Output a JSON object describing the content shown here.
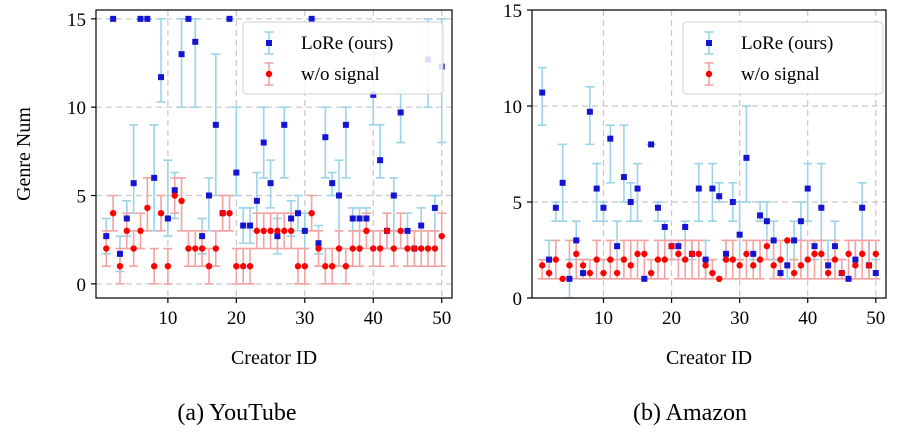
{
  "panels": [
    {
      "caption": "(a) YouTube",
      "xlabel": "Creator ID",
      "ylabel": "Genre Num",
      "legend": [
        "LoRe (ours)",
        "w/o signal"
      ]
    },
    {
      "caption": "(b) Amazon",
      "xlabel": "Creator ID",
      "ylabel": "",
      "legend": [
        "LoRe (ours)",
        "w/o signal"
      ]
    }
  ],
  "chart_data": [
    {
      "type": "scatter",
      "title": "",
      "xlabel": "Creator ID",
      "ylabel": "Genre Num",
      "xlim": [
        -0.5,
        51.5
      ],
      "ylim": [
        -0.8,
        15.5
      ],
      "xticks": [
        10,
        20,
        30,
        40,
        50
      ],
      "yticks": [
        0,
        5,
        10,
        15
      ],
      "grid": true,
      "legend_position": "top-right",
      "series": [
        {
          "name": "LoRe (ours)",
          "color": "#1414d2",
          "errorbar_color": "#9bd3e8",
          "marker": "square",
          "x": [
            1,
            2,
            3,
            4,
            5,
            6,
            7,
            8,
            9,
            10,
            11,
            12,
            13,
            14,
            15,
            16,
            17,
            18,
            19,
            20,
            21,
            22,
            23,
            24,
            25,
            26,
            27,
            28,
            29,
            30,
            31,
            32,
            33,
            34,
            35,
            36,
            37,
            38,
            39,
            40,
            41,
            42,
            43,
            44,
            45,
            46,
            47,
            48,
            49,
            50
          ],
          "y": [
            2.7,
            15,
            1.7,
            3.7,
            5.7,
            15,
            15,
            6,
            11.7,
            3.7,
            5.3,
            13,
            15,
            13.7,
            2.7,
            5,
            9,
            4,
            15,
            6.3,
            3.3,
            3.3,
            4.7,
            8,
            5.7,
            2.7,
            9,
            3.7,
            4,
            3,
            15,
            2.3,
            8.3,
            5.7,
            5,
            9,
            3.7,
            3.7,
            3.7,
            10.7,
            7,
            3,
            5,
            9.7,
            3,
            2,
            3.3,
            12.7,
            4.3,
            12.3
          ],
          "err_low": [
            1.7,
            15,
            0.7,
            2.7,
            4,
            15,
            15,
            3,
            10.3,
            2.7,
            3.7,
            10,
            15,
            10,
            1.7,
            3,
            5,
            3,
            15,
            5,
            2.3,
            2.3,
            3,
            6,
            4.3,
            1.7,
            6,
            2.7,
            3,
            2,
            15,
            1.7,
            6,
            5,
            3,
            6,
            3,
            3,
            3,
            9,
            6,
            2,
            3,
            8,
            2,
            1,
            2,
            10,
            3,
            8
          ],
          "err_high": [
            3.7,
            15,
            2.7,
            4.7,
            9,
            15,
            15,
            9,
            15,
            7,
            6.3,
            15,
            15,
            15,
            3.7,
            6,
            13,
            5,
            15,
            10,
            4.3,
            4.3,
            6.3,
            10,
            7,
            3.7,
            10,
            4.7,
            5,
            4,
            15,
            3.3,
            10,
            6.3,
            7,
            10,
            4.3,
            4.3,
            4.3,
            13,
            9,
            4,
            6,
            11,
            4,
            3,
            4.3,
            15,
            5,
            15
          ]
        },
        {
          "name": "w/o signal",
          "color": "#ff0000",
          "errorbar_color": "#f4a3a3",
          "marker": "circle",
          "x": [
            1,
            2,
            3,
            4,
            5,
            6,
            7,
            8,
            9,
            10,
            11,
            12,
            13,
            14,
            15,
            16,
            17,
            18,
            19,
            20,
            21,
            22,
            23,
            24,
            25,
            26,
            27,
            28,
            29,
            30,
            31,
            32,
            33,
            34,
            35,
            36,
            37,
            38,
            39,
            40,
            41,
            42,
            43,
            44,
            45,
            46,
            47,
            48,
            49,
            50
          ],
          "y": [
            2,
            4,
            1,
            3,
            2,
            3,
            4.3,
            1,
            4,
            1,
            5,
            4.7,
            2,
            2,
            2,
            1,
            2,
            4,
            4,
            1,
            1,
            1,
            3,
            3,
            3,
            3,
            3,
            3,
            1,
            1,
            4,
            2,
            1,
            1,
            2,
            1,
            2,
            2,
            3,
            2,
            2,
            3,
            2,
            3,
            2,
            2,
            2,
            2,
            2,
            2.7
          ],
          "err_low": [
            1,
            3,
            0,
            2,
            1,
            2,
            3,
            0,
            3,
            0,
            4,
            3,
            1,
            1,
            1,
            0,
            1,
            3,
            3,
            0,
            0,
            0,
            2,
            2,
            2,
            2,
            2,
            2,
            0,
            0,
            3,
            1,
            0,
            0,
            1,
            0,
            1,
            1,
            2,
            1,
            1,
            2,
            1,
            2,
            1,
            1,
            1,
            1,
            1,
            1
          ],
          "err_high": [
            3,
            5,
            2,
            4,
            3,
            4,
            6,
            2,
            5,
            2,
            6,
            6,
            3,
            3,
            3,
            2,
            3,
            5,
            5,
            2,
            2,
            2,
            4,
            4,
            4,
            4,
            4,
            4,
            2,
            2,
            5,
            3,
            2,
            2,
            3,
            2,
            3,
            3,
            4,
            3,
            3,
            4,
            3,
            4,
            3,
            3,
            3,
            3,
            3,
            4
          ]
        }
      ]
    },
    {
      "type": "scatter",
      "title": "",
      "xlabel": "Creator ID",
      "ylabel": "",
      "xlim": [
        -0.5,
        51.5
      ],
      "ylim": [
        0,
        15
      ],
      "xticks": [
        10,
        20,
        30,
        40,
        50
      ],
      "yticks": [
        0,
        5,
        10,
        15
      ],
      "grid": true,
      "legend_position": "top-right",
      "series": [
        {
          "name": "LoRe (ours)",
          "color": "#1414d2",
          "errorbar_color": "#9bd3e8",
          "marker": "square",
          "x": [
            1,
            2,
            3,
            4,
            5,
            6,
            7,
            8,
            9,
            10,
            11,
            12,
            13,
            14,
            15,
            16,
            17,
            18,
            19,
            20,
            21,
            22,
            23,
            24,
            25,
            26,
            27,
            28,
            29,
            30,
            31,
            32,
            33,
            34,
            35,
            36,
            37,
            38,
            39,
            40,
            41,
            42,
            43,
            44,
            45,
            46,
            47,
            48,
            49,
            50
          ],
          "y": [
            10.7,
            2,
            4.7,
            6,
            1,
            3,
            1.3,
            9.7,
            5.7,
            4.7,
            8.3,
            2.7,
            6.3,
            5,
            5.7,
            1,
            8,
            4.7,
            3.7,
            2.7,
            2.7,
            3.7,
            2.3,
            5.7,
            2,
            5.7,
            5.3,
            2.3,
            5,
            3.3,
            7.3,
            2.3,
            4.3,
            4,
            3,
            1.3,
            1.7,
            3,
            4,
            5.7,
            2.7,
            4.7,
            1.7,
            2.7,
            1.3,
            1,
            2,
            4.7,
            1.7,
            1.3
          ],
          "err_low": [
            9,
            1,
            4,
            4,
            0,
            2,
            1,
            8,
            4,
            4,
            6,
            2,
            5,
            4,
            4,
            1,
            8,
            4,
            3,
            2,
            2,
            3,
            2,
            4,
            1,
            4,
            5,
            2,
            4,
            2,
            5,
            2,
            4,
            3,
            2,
            1,
            1,
            2,
            3,
            4,
            2,
            3,
            1,
            2,
            1,
            1,
            1,
            3,
            1,
            1
          ],
          "err_high": [
            12,
            3,
            5,
            8,
            2,
            4,
            2,
            11,
            7,
            5,
            9,
            4,
            9,
            6,
            7,
            1,
            8,
            5,
            4,
            3,
            3,
            4,
            3,
            7,
            3,
            7,
            6,
            3,
            6,
            5,
            10,
            3,
            5,
            5,
            4,
            2,
            3,
            4,
            5,
            7,
            3,
            7,
            3,
            4,
            2,
            1,
            3,
            6,
            3,
            2
          ],
          "label": ""
        },
        {
          "name": "w/o signal",
          "color": "#ff0000",
          "errorbar_color": "#f4a3a3",
          "marker": "circle",
          "x": [
            1,
            2,
            3,
            4,
            5,
            6,
            7,
            8,
            9,
            10,
            11,
            12,
            13,
            14,
            15,
            16,
            17,
            18,
            19,
            20,
            21,
            22,
            23,
            24,
            25,
            26,
            27,
            28,
            29,
            30,
            31,
            32,
            33,
            34,
            35,
            36,
            37,
            38,
            39,
            40,
            41,
            42,
            43,
            44,
            45,
            46,
            47,
            48,
            49,
            50
          ],
          "y": [
            1.7,
            1.3,
            2,
            1,
            1.7,
            2.3,
            1.7,
            1.3,
            2,
            1.3,
            2,
            1.3,
            2,
            1.7,
            2.3,
            2.3,
            1.3,
            2,
            2,
            2.7,
            2.3,
            2,
            2.3,
            2.3,
            1.7,
            1.3,
            1,
            2,
            2,
            1.7,
            2.3,
            1.7,
            2,
            2.7,
            1.7,
            2,
            3,
            1.3,
            1.7,
            2,
            2.3,
            2.3,
            1.3,
            2,
            1.3,
            2.3,
            1.7,
            2.3,
            1.7,
            2.3
          ],
          "err_low": [
            1,
            1,
            1,
            1,
            1,
            1,
            1,
            1,
            1,
            1,
            1,
            1,
            1,
            1,
            1,
            1,
            1,
            1,
            1,
            2,
            1,
            1,
            1,
            1,
            1,
            1,
            1,
            1,
            1,
            1,
            1,
            1,
            1,
            2,
            1,
            1,
            3,
            1,
            1,
            1,
            1,
            1,
            1,
            1,
            1,
            1,
            1,
            1,
            1,
            1
          ],
          "err_high": [
            2,
            2,
            3,
            1,
            3,
            3,
            2,
            2,
            3,
            2,
            3,
            2,
            3,
            3,
            3,
            3,
            2,
            3,
            3,
            3,
            3,
            3,
            3,
            3,
            2,
            2,
            1,
            3,
            3,
            2,
            3,
            3,
            3,
            3,
            3,
            3,
            3,
            2,
            3,
            3,
            3,
            3,
            2,
            3,
            2,
            3,
            3,
            3,
            3,
            3
          ]
        }
      ]
    }
  ]
}
